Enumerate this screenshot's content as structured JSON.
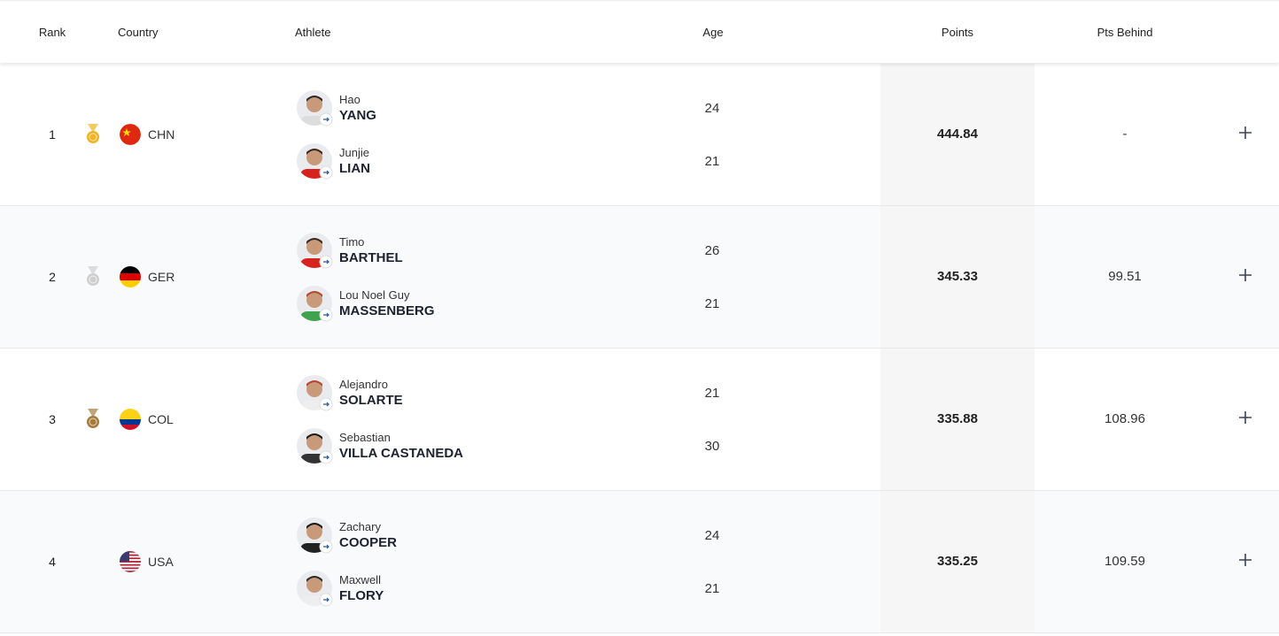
{
  "header": {
    "rank": "Rank",
    "country": "Country",
    "athlete": "Athlete",
    "age": "Age",
    "points": "Points",
    "pts_behind": "Pts Behind"
  },
  "rows": [
    {
      "rank": 1,
      "country": "CHN",
      "athletes": [
        {
          "first": "Hao",
          "last": "YANG",
          "age": 24
        },
        {
          "first": "Junjie",
          "last": "LIAN",
          "age": 21
        }
      ],
      "points": 444.84,
      "pts_behind": "-"
    },
    {
      "rank": 2,
      "country": "GER",
      "athletes": [
        {
          "first": "Timo",
          "last": "BARTHEL",
          "age": 26
        },
        {
          "first": "Lou Noel Guy",
          "last": "MASSENBERG",
          "age": 21
        }
      ],
      "points": 345.33,
      "pts_behind": 99.51
    },
    {
      "rank": 3,
      "country": "COL",
      "athletes": [
        {
          "first": "Alejandro",
          "last": "SOLARTE",
          "age": 21
        },
        {
          "first": "Sebastian",
          "last": "VILLA CASTANEDA",
          "age": 30
        }
      ],
      "points": 335.88,
      "pts_behind": 108.96
    },
    {
      "rank": 4,
      "country": "USA",
      "athletes": [
        {
          "first": "Zachary",
          "last": "COOPER",
          "age": 24
        },
        {
          "first": "Maxwell",
          "last": "FLORY",
          "age": 21
        }
      ],
      "points": 335.25,
      "pts_behind": 109.59
    }
  ]
}
